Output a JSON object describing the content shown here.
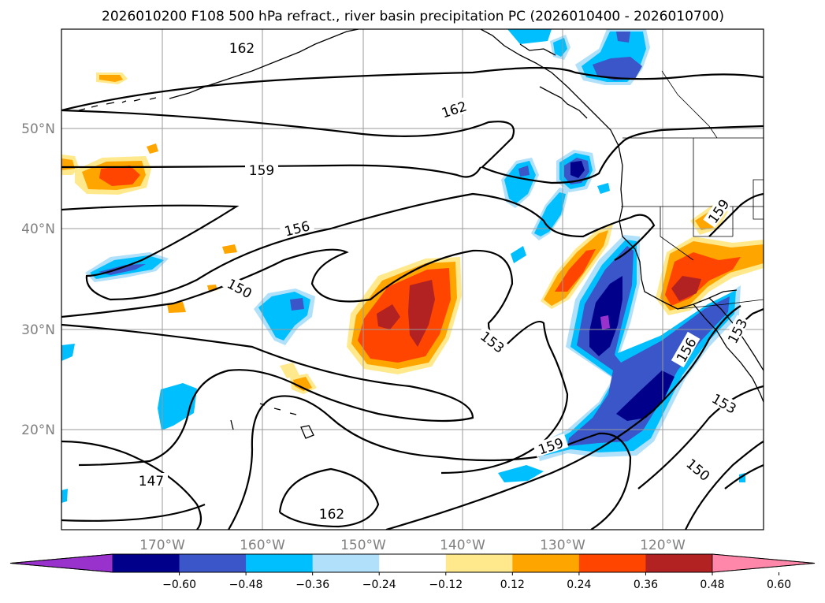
{
  "title": "2026010200 F108 500 hPa refract., river basin precipitation PC (2026010400 - 2026010700)",
  "axes": {
    "lat_labels": [
      "50°N",
      "40°N",
      "30°N",
      "20°N"
    ],
    "lon_labels": [
      "170°W",
      "160°W",
      "150°W",
      "140°W",
      "130°W",
      "120°W"
    ]
  },
  "contour_labels": [
    "162",
    "162",
    "159",
    "156",
    "150",
    "153",
    "156",
    "153",
    "159",
    "150",
    "147",
    "162",
    "159",
    "153"
  ],
  "colorbar": {
    "tick_labels": [
      "−0.60",
      "−0.48",
      "−0.36",
      "−0.24",
      "−0.12",
      "0.12",
      "0.24",
      "0.36",
      "0.48",
      "0.60"
    ],
    "colors": [
      "#9932cc",
      "#00008b",
      "#3a56c8",
      "#00bfff",
      "#b0e0fa",
      "#ffffff",
      "#ffe98c",
      "#ffa500",
      "#ff4500",
      "#b22222",
      "#ff88aa"
    ]
  },
  "shading_colors": {
    "neg_1": "#b0e0fa",
    "neg_2": "#00bfff",
    "neg_3": "#3a56c8",
    "neg_4": "#00008b",
    "neg_5": "#9932cc",
    "pos_1": "#ffe98c",
    "pos_2": "#ffa500",
    "pos_3": "#ff4500",
    "pos_4": "#b22222"
  }
}
